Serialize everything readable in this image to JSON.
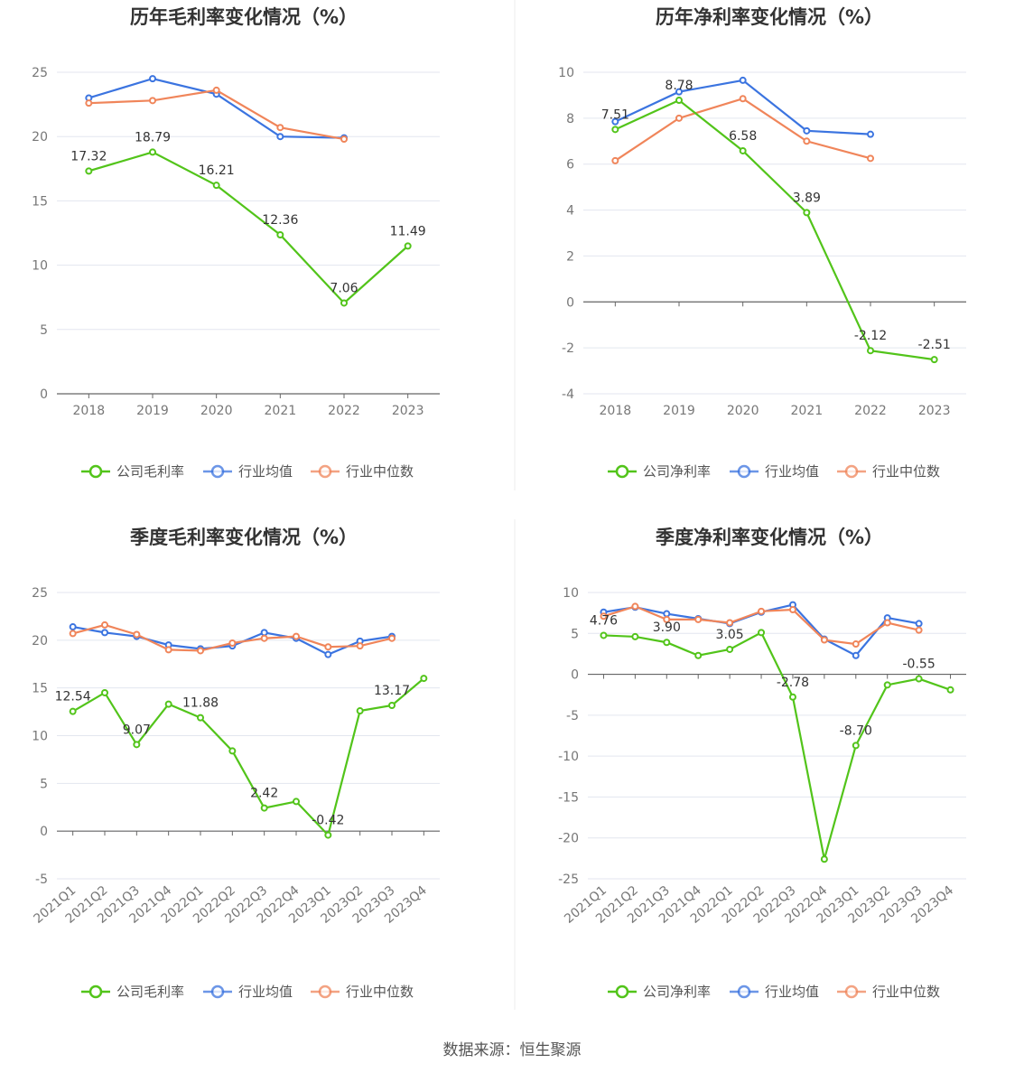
{
  "source": "数据来源：恒生聚源",
  "colors": {
    "company": "#52c41a",
    "avg": "#3b74e0",
    "median": "#f0855a",
    "grid": "#e3e6ef",
    "axis": "#666666"
  },
  "chart_data": [
    {
      "type": "line",
      "title": "历年毛利率变化情况（%）",
      "categories": [
        "2018",
        "2019",
        "2020",
        "2021",
        "2022",
        "2023"
      ],
      "ylim": [
        0,
        25
      ],
      "yticks": [
        0,
        5,
        10,
        15,
        20,
        25
      ],
      "series": [
        {
          "name": "公司毛利率",
          "role": "company",
          "values": [
            17.32,
            18.79,
            16.21,
            12.36,
            7.06,
            11.49
          ],
          "labels": [
            "17.32",
            "18.79",
            "16.21",
            "12.36",
            "7.06",
            "11.49"
          ]
        },
        {
          "name": "行业均值",
          "role": "avg",
          "values": [
            23.0,
            24.5,
            23.3,
            20.0,
            19.9,
            null
          ]
        },
        {
          "name": "行业中位数",
          "role": "median",
          "values": [
            22.6,
            22.8,
            23.6,
            20.7,
            19.8,
            null
          ]
        }
      ]
    },
    {
      "type": "line",
      "title": "历年净利率变化情况（%）",
      "categories": [
        "2018",
        "2019",
        "2020",
        "2021",
        "2022",
        "2023"
      ],
      "ylim": [
        -4,
        10
      ],
      "yticks": [
        -4,
        -2,
        0,
        2,
        4,
        6,
        8,
        10
      ],
      "series": [
        {
          "name": "公司净利率",
          "role": "company",
          "values": [
            7.51,
            8.78,
            6.58,
            3.89,
            -2.12,
            -2.51
          ],
          "labels": [
            "7.51",
            "8.78",
            "6.58",
            "3.89",
            "-2.12",
            "-2.51"
          ]
        },
        {
          "name": "行业均值",
          "role": "avg",
          "values": [
            7.85,
            9.15,
            9.65,
            7.45,
            7.3,
            null
          ]
        },
        {
          "name": "行业中位数",
          "role": "median",
          "values": [
            6.15,
            8.0,
            8.85,
            7.0,
            6.25,
            null
          ]
        }
      ]
    },
    {
      "type": "line",
      "title": "季度毛利率变化情况（%）",
      "categories": [
        "2021Q1",
        "2021Q2",
        "2021Q3",
        "2021Q4",
        "2022Q1",
        "2022Q2",
        "2022Q3",
        "2022Q4",
        "2023Q1",
        "2023Q2",
        "2023Q3",
        "2023Q4"
      ],
      "ylim": [
        -5,
        25
      ],
      "yticks": [
        -5,
        0,
        5,
        10,
        15,
        20,
        25
      ],
      "series": [
        {
          "name": "公司毛利率",
          "role": "company",
          "values": [
            12.54,
            14.5,
            9.07,
            13.3,
            11.88,
            8.4,
            2.42,
            3.1,
            -0.42,
            12.6,
            13.17,
            16.0
          ],
          "labels": [
            "12.54",
            "",
            "9.07",
            "",
            "11.88",
            "",
            "2.42",
            "",
            "-0.42",
            "",
            "13.17",
            ""
          ]
        },
        {
          "name": "行业均值",
          "role": "avg",
          "values": [
            21.4,
            20.8,
            20.4,
            19.5,
            19.1,
            19.4,
            20.8,
            20.2,
            18.5,
            19.9,
            20.4,
            null
          ]
        },
        {
          "name": "行业中位数",
          "role": "median",
          "values": [
            20.7,
            21.6,
            20.6,
            19.0,
            18.9,
            19.7,
            20.2,
            20.4,
            19.3,
            19.4,
            20.2,
            null
          ]
        }
      ]
    },
    {
      "type": "line",
      "title": "季度净利率变化情况（%）",
      "categories": [
        "2021Q1",
        "2021Q2",
        "2021Q3",
        "2021Q4",
        "2022Q1",
        "2022Q2",
        "2022Q3",
        "2022Q4",
        "2023Q1",
        "2023Q2",
        "2023Q3",
        "2023Q4"
      ],
      "ylim": [
        -25,
        10
      ],
      "yticks": [
        -25,
        -20,
        -15,
        -10,
        -5,
        0,
        5,
        10
      ],
      "series": [
        {
          "name": "公司净利率",
          "role": "company",
          "values": [
            4.76,
            4.6,
            3.9,
            2.3,
            3.05,
            5.1,
            -2.78,
            -22.6,
            -8.7,
            -1.3,
            -0.55,
            -1.9
          ],
          "labels": [
            "4.76",
            "",
            "3.90",
            "",
            "3.05",
            "",
            "-2.78",
            "",
            "-8.70",
            "",
            "-0.55",
            ""
          ]
        },
        {
          "name": "行业均值",
          "role": "avg",
          "values": [
            7.6,
            8.2,
            7.4,
            6.8,
            6.2,
            7.6,
            8.5,
            4.3,
            2.3,
            6.9,
            6.2,
            null
          ]
        },
        {
          "name": "行业中位数",
          "role": "median",
          "values": [
            7.1,
            8.3,
            6.7,
            6.7,
            6.3,
            7.7,
            7.9,
            4.2,
            3.7,
            6.3,
            5.4,
            null
          ]
        }
      ]
    }
  ]
}
